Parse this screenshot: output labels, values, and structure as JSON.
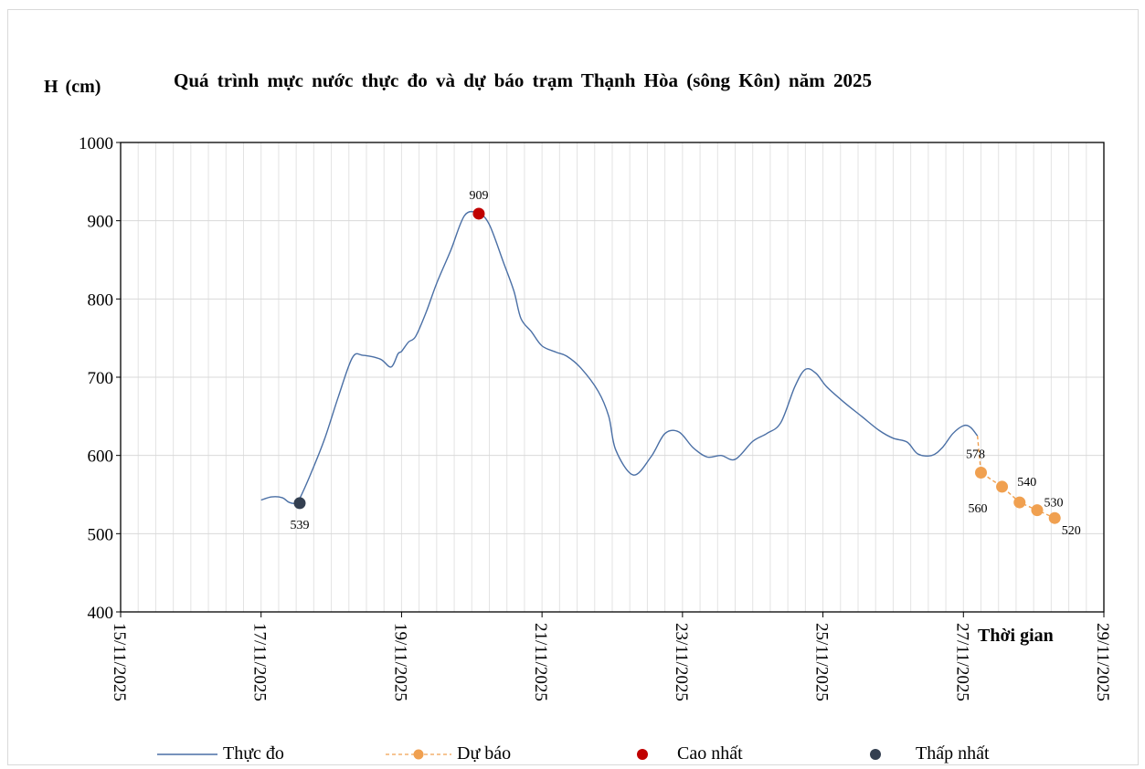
{
  "chart_data": {
    "type": "line",
    "title": "Quá trình mực nước thực đo và dự báo trạm Thạnh Hòa (sông Kôn) năm 2025",
    "ylabel": "H (cm)",
    "xlabel": "Thời gian",
    "ylim": [
      400,
      1000
    ],
    "yticks": [
      "400",
      "500",
      "600",
      "700",
      "800",
      "900",
      "1000"
    ],
    "xlim_days": [
      0,
      14
    ],
    "xticks": [
      "15/11/2025",
      "17/11/2025",
      "19/11/2025",
      "21/11/2025",
      "23/11/2025",
      "25/11/2025",
      "27/11/2025",
      "29/11/2025"
    ],
    "grid": true,
    "legend_position": "bottom",
    "series": [
      {
        "name": "Thực đo",
        "color": "#4a6fa5",
        "x_day_offset": [
          2.0,
          2.15,
          2.3,
          2.4,
          2.5,
          2.55,
          2.7,
          2.9,
          3.1,
          3.3,
          3.45,
          3.7,
          3.85,
          3.95,
          4.0,
          4.1,
          4.2,
          4.35,
          4.5,
          4.7,
          4.9,
          5.1,
          5.25,
          5.45,
          5.6,
          5.7,
          5.85,
          6.0,
          6.2,
          6.35,
          6.55,
          6.8,
          6.95,
          7.05,
          7.3,
          7.55,
          7.75,
          7.95,
          8.15,
          8.35,
          8.55,
          8.75,
          9.0,
          9.2,
          9.4,
          9.6,
          9.75,
          9.9,
          10.05,
          10.3,
          10.55,
          10.8,
          11.0,
          11.2,
          11.35,
          11.55,
          11.7,
          11.85,
          12.0,
          12.1,
          12.2
        ],
        "values": [
          543,
          547,
          546,
          540,
          539,
          545,
          575,
          620,
          675,
          725,
          728,
          723,
          713,
          730,
          733,
          745,
          752,
          783,
          820,
          862,
          907,
          909,
          895,
          847,
          810,
          775,
          758,
          740,
          732,
          727,
          712,
          682,
          650,
          607,
          575,
          598,
          628,
          630,
          610,
          598,
          600,
          595,
          618,
          628,
          642,
          688,
          710,
          705,
          688,
          668,
          650,
          632,
          622,
          617,
          602,
          600,
          610,
          628,
          638,
          636,
          625
        ]
      },
      {
        "name": "Dự báo",
        "color": "#f0a050",
        "x_day_offset": [
          12.25,
          12.55,
          12.8,
          13.05,
          13.3
        ],
        "values": [
          578,
          560,
          540,
          530,
          520
        ],
        "labels": [
          "578",
          "560",
          "540",
          "530",
          "520"
        ]
      }
    ],
    "highlights": [
      {
        "name": "Cao nhất",
        "color": "#c00000",
        "x_day_offset": 5.1,
        "value": 909,
        "label": "909"
      },
      {
        "name": "Thấp nhất",
        "color": "#333f50",
        "x_day_offset": 2.55,
        "value": 539,
        "label": "539"
      }
    ]
  }
}
